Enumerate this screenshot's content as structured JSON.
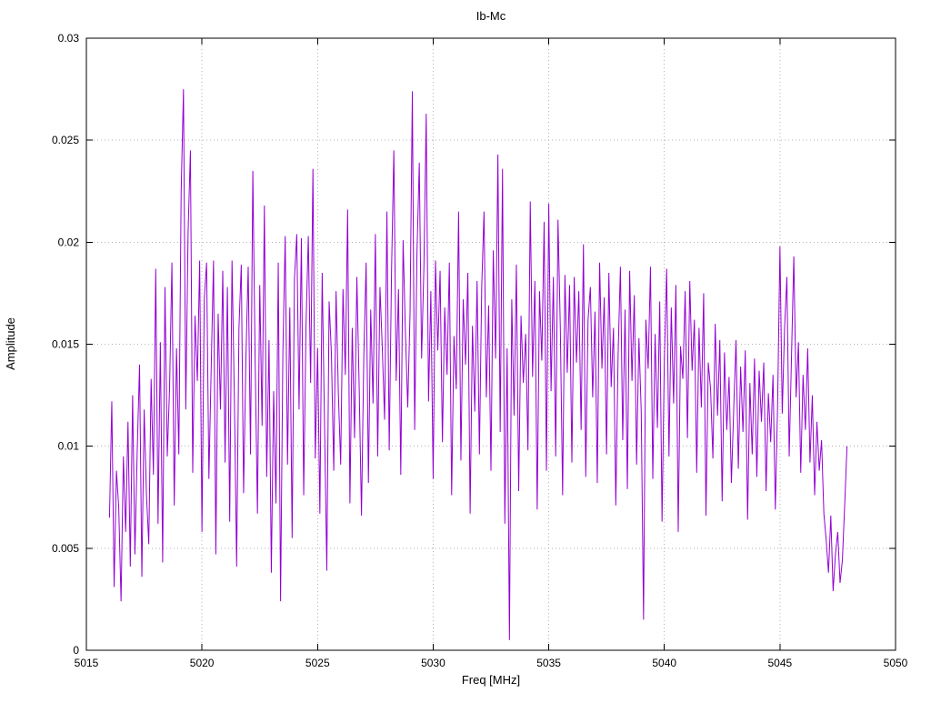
{
  "page": {
    "background": "#ffffff"
  },
  "chart_data": {
    "type": "line",
    "title": "Ib-Mc",
    "xlabel": "Freq [MHz]",
    "ylabel": "Amplitude",
    "xlim": [
      5015,
      5050
    ],
    "ylim": [
      0,
      0.03
    ],
    "x_ticks": [
      5015,
      5020,
      5025,
      5030,
      5035,
      5040,
      5045,
      5050
    ],
    "x_tick_labels": [
      "5015",
      "5020",
      "5025",
      "5030",
      "5035",
      "5040",
      "5045",
      "5050"
    ],
    "y_ticks": [
      0,
      0.005,
      0.01,
      0.015,
      0.02,
      0.025,
      0.03
    ],
    "y_tick_labels": [
      "0",
      "0.005",
      "0.01",
      "0.015",
      "0.02",
      "0.025",
      "0.03"
    ],
    "grid": "dotted",
    "legend": "none",
    "line_color": "#9400d3",
    "grid_color": "#b3b3b3",
    "border_color": "#000000",
    "series_name": "Ib-Mc",
    "x_start": 5016.0,
    "x_step": 0.1,
    "value_scale": 0.0001,
    "values": [
      65,
      122,
      31,
      88,
      70,
      24,
      95,
      58,
      112,
      41,
      125,
      47,
      98,
      140,
      36,
      118,
      76,
      52,
      133,
      86,
      187,
      62,
      151,
      43,
      178,
      95,
      129,
      190,
      71,
      148,
      96,
      225,
      275,
      118,
      205,
      245,
      87,
      164,
      132,
      191,
      58,
      172,
      190,
      84,
      139,
      191,
      47,
      165,
      118,
      186,
      92,
      178,
      63,
      191,
      125,
      41,
      158,
      189,
      77,
      143,
      188,
      96,
      235,
      142,
      67,
      179,
      110,
      218,
      85,
      152,
      38,
      127,
      72,
      190,
      24,
      146,
      203,
      91,
      168,
      55,
      182,
      204,
      118,
      202,
      76,
      159,
      203,
      131,
      236,
      94,
      148,
      67,
      185,
      112,
      39,
      171,
      145,
      88,
      176,
      126,
      91,
      177,
      135,
      216,
      72,
      158,
      104,
      183,
      129,
      66,
      144,
      190,
      82,
      167,
      121,
      204,
      95,
      178,
      148,
      113,
      215,
      98,
      186,
      245,
      132,
      177,
      86,
      201,
      156,
      119,
      165,
      274,
      108,
      195,
      239,
      143,
      188,
      263,
      122,
      176,
      84,
      191,
      147,
      186,
      102,
      168,
      135,
      190,
      76,
      154,
      128,
      215,
      93,
      172,
      140,
      185,
      67,
      159,
      117,
      181,
      96,
      178,
      215,
      124,
      169,
      88,
      196,
      143,
      243,
      107,
      236,
      62,
      148,
      5,
      172,
      115,
      189,
      78,
      164,
      131,
      155,
      98,
      220,
      134,
      181,
      69,
      176,
      142,
      210,
      88,
      219,
      127,
      183,
      95,
      211,
      158,
      76,
      184,
      136,
      179,
      92,
      183,
      141,
      176,
      108,
      199,
      85,
      162,
      178,
      124,
      166,
      82,
      190,
      138,
      173,
      96,
      185,
      129,
      158,
      71,
      145,
      188,
      103,
      167,
      79,
      186,
      132,
      174,
      91,
      153,
      117,
      15,
      162,
      138,
      188,
      84,
      155,
      109,
      171,
      63,
      142,
      187,
      95,
      168,
      121,
      179,
      58,
      149,
      133,
      176,
      104,
      181,
      137,
      162,
      87,
      158,
      119,
      175,
      66,
      141,
      128,
      94,
      160,
      115,
      152,
      73,
      146,
      108,
      134,
      82,
      118,
      152,
      89,
      139,
      107,
      147,
      64,
      131,
      96,
      143,
      85,
      137,
      112,
      141,
      78,
      126,
      102,
      135,
      69,
      121,
      198,
      116,
      158,
      183,
      95,
      144,
      193,
      124,
      151,
      87,
      135,
      108,
      148,
      92,
      125,
      76,
      112,
      88,
      103,
      67,
      54,
      38,
      66,
      29,
      47,
      58,
      33,
      44,
      71,
      100
    ]
  }
}
